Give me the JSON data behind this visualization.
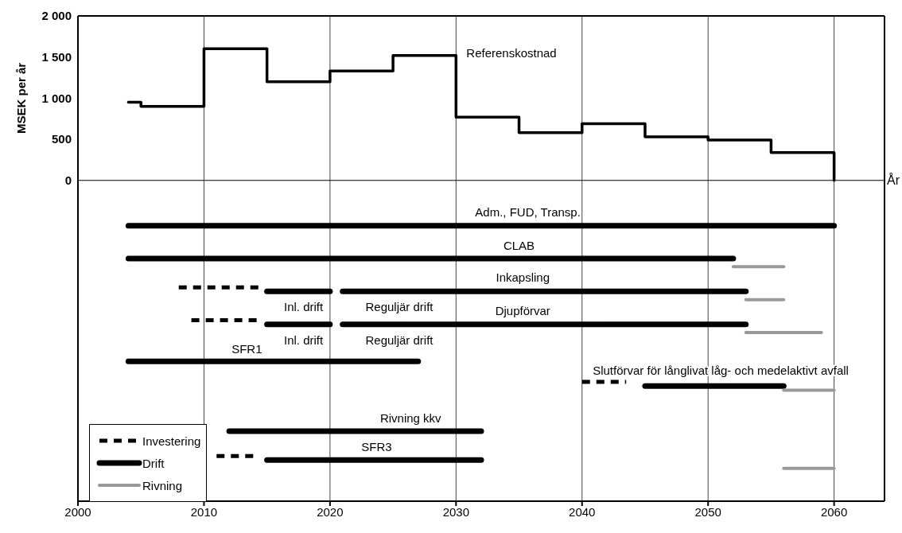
{
  "chart_data": {
    "type": "line",
    "xlabel": "År",
    "ylabel": "MSEK per år",
    "xlim": [
      2000,
      2064
    ],
    "xticks": [
      2000,
      2010,
      2020,
      2030,
      2040,
      2050,
      2060
    ],
    "ylim": [
      -3900,
      2000
    ],
    "yticks": [
      0,
      500,
      {
        "value": 1000,
        "label": "1 000"
      },
      {
        "value": 1500,
        "label": "1 500"
      },
      {
        "value": 2000,
        "label": "2 000"
      }
    ],
    "grid": "x",
    "legend": "bottom left",
    "ref_lines": [
      {
        "axis": "y",
        "value": 0,
        "color": "#000000"
      }
    ],
    "series": [
      {
        "type": "step",
        "color": "#000000",
        "x": [
          2004,
          2005,
          2010,
          2015,
          2020,
          2025,
          2030,
          2035,
          2040,
          2045,
          2050,
          2055,
          2060
        ],
        "values": [
          950,
          900,
          1600,
          1200,
          1330,
          1520,
          770,
          580,
          690,
          530,
          490,
          340,
          0
        ]
      },
      {
        "name": "Investering",
        "type": "line",
        "color": "#000000",
        "line_style": "dashed",
        "x": [
          2008,
          2014.5
        ],
        "values": [
          -1300,
          -1300
        ]
      },
      {
        "type": "line",
        "color": "#000000",
        "line_style": "dashed",
        "x": [
          2009,
          2014.5
        ],
        "values": [
          -1700,
          -1700
        ]
      },
      {
        "type": "line",
        "color": "#000000",
        "line_style": "dashed",
        "x": [
          2040,
          2043.5
        ],
        "values": [
          -2450,
          -2450
        ]
      },
      {
        "type": "line",
        "color": "#000000",
        "line_style": "dashed",
        "x": [
          2011,
          2014
        ],
        "values": [
          -3350,
          -3350
        ]
      },
      {
        "name": "Drift",
        "type": "line",
        "color": "#000000",
        "line_style": "solid",
        "x": [
          2004,
          2060
        ],
        "values": [
          -550,
          -550
        ]
      },
      {
        "type": "line",
        "color": "#000000",
        "line_style": "solid",
        "x": [
          2004,
          2052
        ],
        "values": [
          -950,
          -950
        ]
      },
      {
        "type": "line",
        "color": "#000000",
        "line_style": "solid",
        "x": [
          2015,
          2020
        ],
        "values": [
          -1350,
          -1350
        ]
      },
      {
        "type": "line",
        "color": "#000000",
        "line_style": "solid",
        "x": [
          2021,
          2053
        ],
        "values": [
          -1350,
          -1350
        ]
      },
      {
        "type": "line",
        "color": "#000000",
        "line_style": "solid",
        "x": [
          2015,
          2020
        ],
        "values": [
          -1750,
          -1750
        ]
      },
      {
        "type": "line",
        "color": "#000000",
        "line_style": "solid",
        "x": [
          2021,
          2053
        ],
        "values": [
          -1750,
          -1750
        ]
      },
      {
        "type": "line",
        "color": "#000000",
        "line_style": "solid",
        "x": [
          2004,
          2027
        ],
        "values": [
          -2200,
          -2200
        ]
      },
      {
        "type": "line",
        "color": "#000000",
        "line_style": "solid",
        "x": [
          2045,
          2056
        ],
        "values": [
          -2500,
          -2500
        ]
      },
      {
        "type": "line",
        "color": "#000000",
        "line_style": "solid",
        "x": [
          2012,
          2032
        ],
        "values": [
          -3050,
          -3050
        ]
      },
      {
        "type": "line",
        "color": "#000000",
        "line_style": "solid",
        "x": [
          2015,
          2032
        ],
        "values": [
          -3400,
          -3400
        ]
      },
      {
        "name": "Rivning",
        "type": "line",
        "color": "#999999",
        "line_style": "solid",
        "x": [
          2052,
          2056
        ],
        "values": [
          -1050,
          -1050
        ]
      },
      {
        "type": "line",
        "color": "#999999",
        "line_style": "solid",
        "x": [
          2053,
          2056
        ],
        "values": [
          -1450,
          -1450
        ]
      },
      {
        "type": "line",
        "color": "#999999",
        "line_style": "solid",
        "x": [
          2053,
          2059
        ],
        "values": [
          -1850,
          -1850
        ]
      },
      {
        "type": "line",
        "color": "#999999",
        "line_style": "solid",
        "x": [
          2056,
          2060
        ],
        "values": [
          -2550,
          -2550
        ]
      },
      {
        "type": "line",
        "color": "#999999",
        "line_style": "solid",
        "x": [
          2056,
          2060
        ],
        "values": [
          -3500,
          -3500
        ]
      }
    ],
    "annotations": [
      "Referenskostnad",
      "Adm., FUD, Transp.",
      "CLAB",
      "Inkapsling",
      "Inl. drift",
      "Reguljär drift",
      "Djupförvar",
      "Inl. drift",
      "Reguljär drift",
      "SFR1",
      "Slutförvar för långlivat låg- och medelaktivt avfall",
      "Rivning kkv",
      "SFR3"
    ]
  }
}
